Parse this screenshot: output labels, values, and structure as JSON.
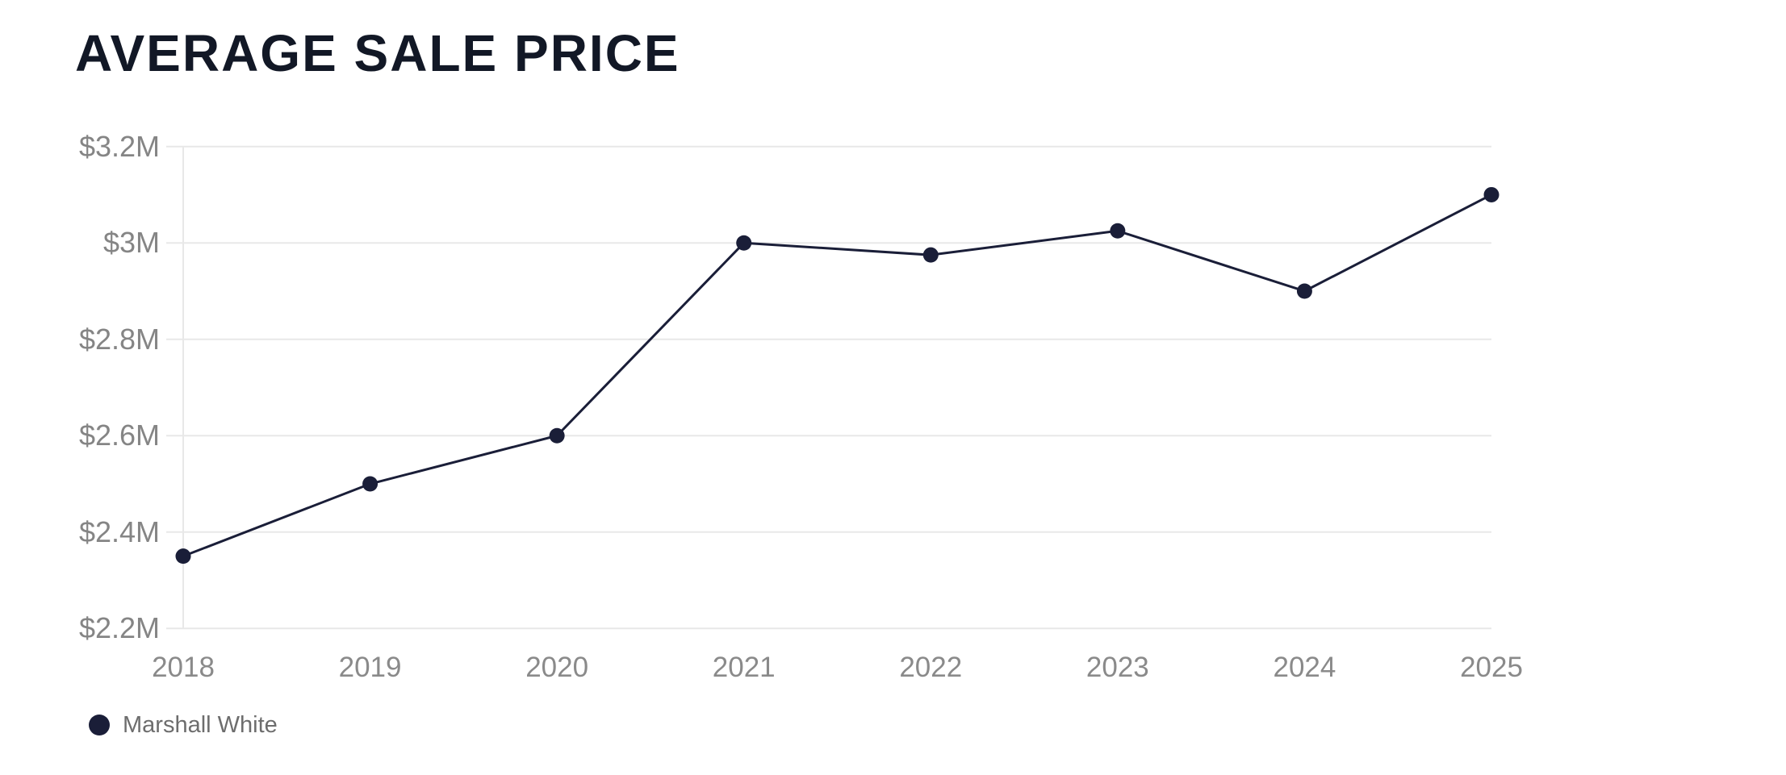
{
  "header": {
    "title": "AVERAGE SALE PRICE"
  },
  "chart_data": {
    "type": "line",
    "title": "AVERAGE SALE PRICE",
    "categories": [
      "2018",
      "2019",
      "2020",
      "2021",
      "2022",
      "2023",
      "2024",
      "2025"
    ],
    "series": [
      {
        "name": "Marshall White",
        "values": [
          2350000,
          2500000,
          2600000,
          3000000,
          2975000,
          3025000,
          2900000,
          3100000
        ],
        "color": "#1a1e38"
      }
    ],
    "xlabel": "",
    "ylabel": "",
    "ylim": [
      2200000,
      3200000
    ],
    "y_ticks": [
      {
        "label": "$3.2M",
        "value": 3200000
      },
      {
        "label": "$3M",
        "value": 3000000
      },
      {
        "label": "$2.8M",
        "value": 2800000
      },
      {
        "label": "$2.6M",
        "value": 2600000
      },
      {
        "label": "$2.4M",
        "value": 2400000
      },
      {
        "label": "$2.2M",
        "value": 2200000
      }
    ],
    "grid": "horizontal",
    "legend_position": "bottom-left"
  },
  "legend": {
    "items": [
      {
        "label": "Marshall White",
        "color": "#1a1e38"
      }
    ]
  },
  "colors": {
    "background": "#ffffff",
    "title_text": "#121826",
    "series_navy": "#1a1e38",
    "gridline": "#e8e8e8",
    "axis_label": "#858585",
    "legend_label": "#6d6d6d"
  }
}
